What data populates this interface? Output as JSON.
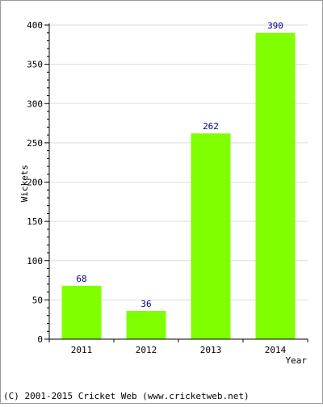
{
  "chart_data": {
    "type": "bar",
    "categories": [
      "2011",
      "2012",
      "2013",
      "2014"
    ],
    "values": [
      68,
      36,
      262,
      390
    ],
    "data_labels": [
      "68",
      "36",
      "262",
      "390"
    ],
    "xlabel": "Year",
    "ylabel": "Wickets",
    "ylim": [
      0,
      400
    ],
    "yticks": [
      "0",
      "50",
      "100",
      "150",
      "200",
      "250",
      "300",
      "350",
      "400"
    ],
    "ytick_values": [
      0,
      50,
      100,
      150,
      200,
      250,
      300,
      350,
      400
    ],
    "grid": true,
    "legend": "none",
    "bar_color": "#80FF00",
    "label_color": "#000080",
    "grid_color": "#dddddd"
  },
  "footer": {
    "text": "(C) 2001-2015 Cricket Web (www.cricketweb.net)"
  }
}
